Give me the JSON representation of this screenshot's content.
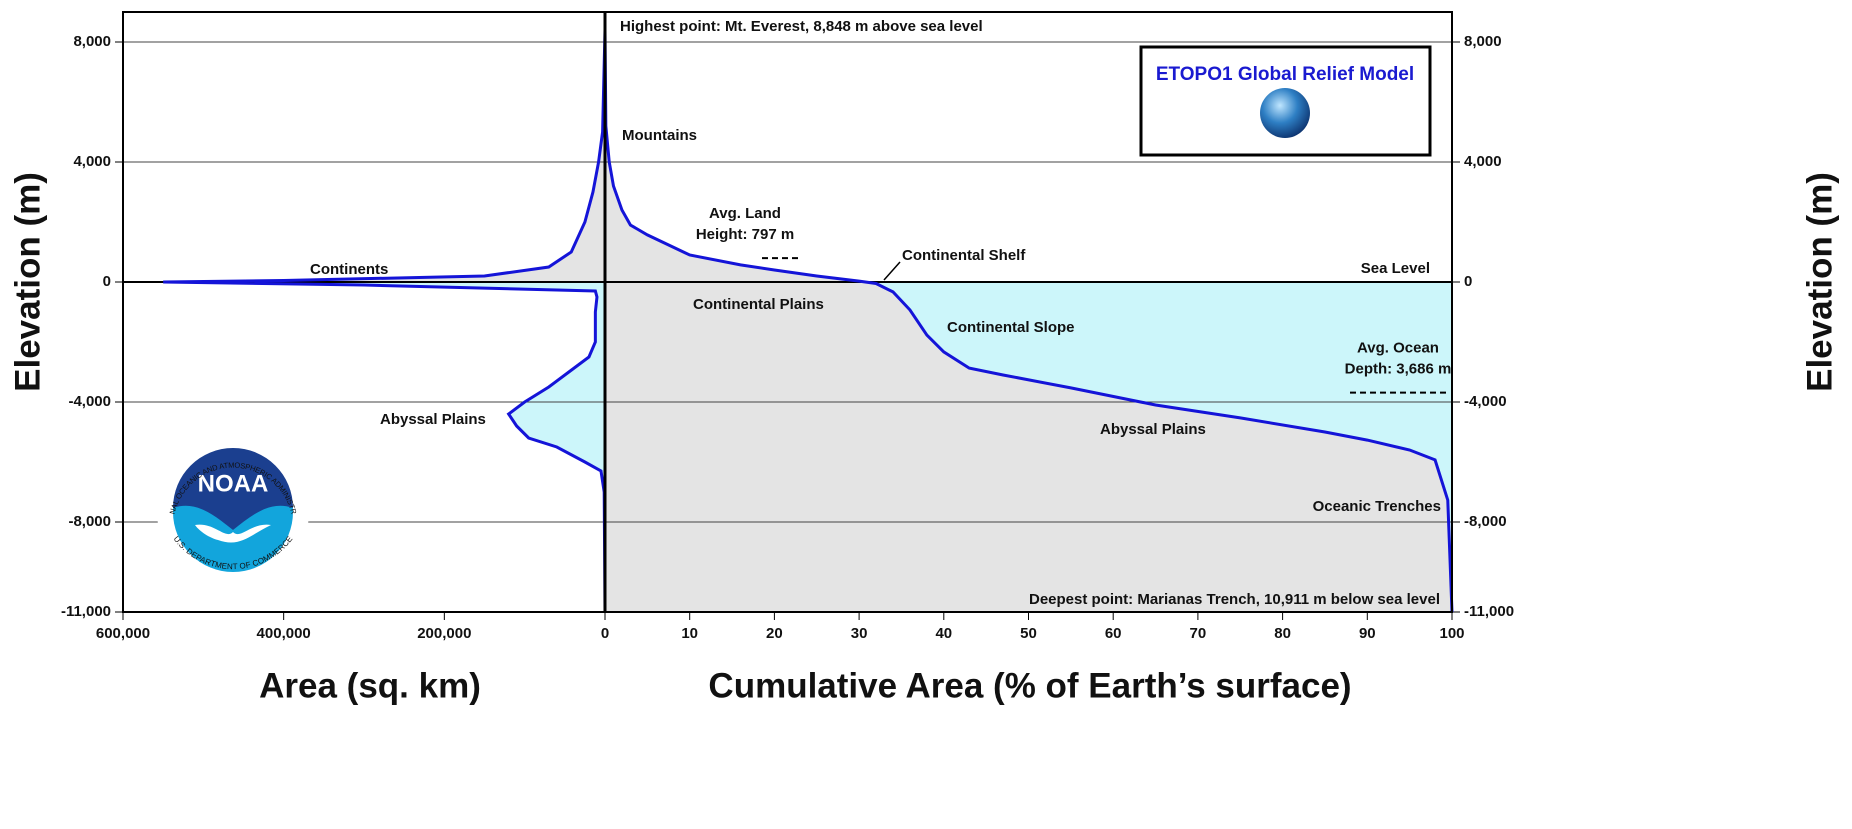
{
  "chart_data": [
    {
      "type": "area",
      "x_label": "Area (sq. km)",
      "y_label": "Elevation (m)",
      "xlim": [
        600000,
        0
      ],
      "xticks": [
        {
          "value": 600000,
          "label": "600,000"
        },
        {
          "value": 400000,
          "label": "400,000"
        },
        {
          "value": 200000,
          "label": "200,000"
        }
      ],
      "ylim": [
        -11000,
        9000
      ],
      "yticks": [
        {
          "value": 8000,
          "label": "8,000"
        },
        {
          "value": 4000,
          "label": "4,000"
        },
        0,
        {
          "value": -4000,
          "label": "-4,000"
        },
        {
          "value": -8000,
          "label": "-8,000"
        },
        {
          "value": -11000,
          "label": "-11,000"
        }
      ],
      "grid": true,
      "color": "#1414d8",
      "fill_above": "#e4e4e4",
      "fill_below": "#ccf6fa",
      "y": [
        8400,
        5000,
        4000,
        3000,
        2000,
        1000,
        500,
        200,
        50,
        0,
        -100,
        -300,
        -500,
        -1000,
        -2000,
        -2500,
        -3000,
        -3500,
        -4000,
        -4400,
        -4800,
        -5200,
        -5500,
        -6000,
        -6300,
        -7000,
        -11000
      ],
      "x": [
        0,
        3000,
        8000,
        15000,
        25000,
        42000,
        70000,
        150000,
        400000,
        550000,
        300000,
        12000,
        10000,
        12000,
        12000,
        20000,
        45000,
        70000,
        100000,
        120000,
        110000,
        95000,
        60000,
        25000,
        5000,
        1000,
        0
      ],
      "annotations": [
        "Continents",
        "Abyssal Plains"
      ]
    },
    {
      "type": "line",
      "x_label": "Cumulative Area (% of Earth’s surface)",
      "y_label": "Elevation (m)",
      "xlim": [
        0,
        100
      ],
      "xticks": [
        0,
        10,
        20,
        30,
        40,
        50,
        60,
        70,
        80,
        90,
        100
      ],
      "ylim": [
        -11000,
        9000
      ],
      "yticks": [
        {
          "value": 8000,
          "label": "8,000"
        },
        {
          "value": 4000,
          "label": "4,000"
        },
        0,
        {
          "value": -4000,
          "label": "-4,000"
        },
        {
          "value": -8000,
          "label": "-8,000"
        },
        {
          "value": -11000,
          "label": "-11,000"
        }
      ],
      "grid": true,
      "color": "#1414d8",
      "fill_above": "#e4e4e4",
      "fill_below": "#ccf6fa",
      "x": [
        0,
        0.1,
        0.5,
        1,
        2,
        3,
        5,
        10,
        16,
        20,
        25,
        30,
        32,
        34,
        36,
        38,
        40,
        43,
        47,
        55,
        65,
        75,
        85,
        90,
        95,
        98,
        99.5,
        100
      ],
      "y": [
        8400,
        5200,
        4000,
        3200,
        2400,
        1900,
        1570,
        900,
        570,
        400,
        200,
        30,
        -50,
        -330,
        -930,
        -1770,
        -2330,
        -2870,
        -3100,
        -3530,
        -4100,
        -4530,
        -5000,
        -5270,
        -5600,
        -5930,
        -7270,
        -11000
      ],
      "reference_lines": [
        {
          "value": 797,
          "label": [
            "Avg. Land",
            "Height: 797 m"
          ]
        },
        {
          "value": -3686,
          "label": [
            "Avg. Ocean",
            "Depth: 3,686 m"
          ]
        }
      ],
      "annotations": [
        "Highest point: Mt. Everest, 8,848 m above sea level",
        "Mountains",
        "Continental Shelf",
        "Sea Level",
        "Continental Plains",
        "Continental Slope",
        "Abyssal Plains",
        "Oceanic Trenches",
        "Deepest point: Marianas Trench, 10,911 m below sea level"
      ]
    }
  ],
  "logos": {
    "etopo": "ETOPO1 Global Relief Model",
    "noaa": "NOAA",
    "noaa_ring_top": "NATIONAL OCEANIC AND ATMOSPHERIC ADMINISTRATION",
    "noaa_ring_bottom": "U.S. DEPARTMENT OF COMMERCE"
  }
}
